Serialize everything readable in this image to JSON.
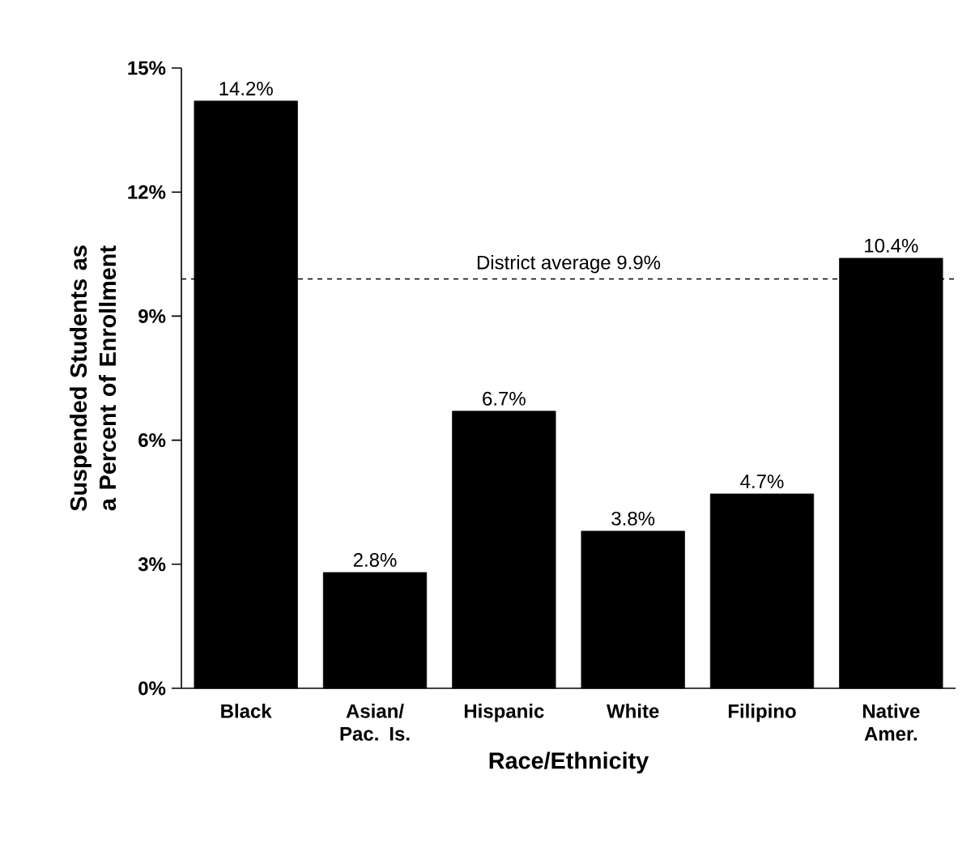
{
  "chart_data": {
    "type": "bar",
    "xlabel": "Race/Ethnicity",
    "ylabel": "Suspended Students as a Percent of Enrollment",
    "categories": [
      "Black",
      "Asian/ Pac. Is.",
      "Hispanic",
      "White",
      "Filipino",
      "Native Amer."
    ],
    "values": [
      14.2,
      2.8,
      6.7,
      3.8,
      4.7,
      10.4
    ],
    "value_labels": [
      "14.2%",
      "2.8%",
      "6.7%",
      "3.8%",
      "4.7%",
      "10.4%"
    ],
    "color": "#000000",
    "ylim": [
      0,
      15
    ],
    "yticks": [
      {
        "value": 0,
        "label": "0%"
      },
      {
        "value": 3,
        "label": "3%"
      },
      {
        "value": 6,
        "label": "6%"
      },
      {
        "value": 9,
        "label": "9%"
      },
      {
        "value": 12,
        "label": "12%"
      },
      {
        "value": 15,
        "label": "15%"
      }
    ],
    "ref_lines": [
      {
        "axis": "y",
        "value": 9.9,
        "label": "District average 9.9%",
        "line_style": "dashed",
        "color": "#000000"
      }
    ],
    "grid": false
  }
}
